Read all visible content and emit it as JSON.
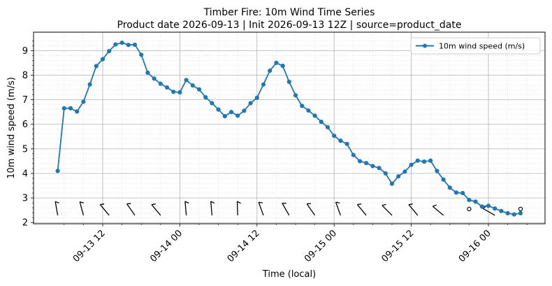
{
  "chart_data": {
    "type": "line",
    "title_line1": "Timber Fire: 10m Wind Time Series",
    "title_line2": "Product date 2026-09-13 | Init 2026-09-13 12Z | source=product_date",
    "xlabel": "Time (local)",
    "ylabel": "10m wind speed (m/s)",
    "ylim": [
      1.95,
      9.75
    ],
    "yticks": [
      2,
      3,
      4,
      5,
      6,
      7,
      8,
      9
    ],
    "xlim_hours": [
      -7.5,
      48.4
    ],
    "xticks": [
      {
        "hour": 0,
        "label": "09-13 12"
      },
      {
        "hour": 12,
        "label": "09-14 00"
      },
      {
        "hour": 24,
        "label": "09-14 12"
      },
      {
        "hour": 36,
        "label": "09-15 00"
      },
      {
        "hour": 48,
        "label": "09-15 12"
      },
      {
        "hour": 60,
        "label": "09-16 00"
      }
    ],
    "x_start_time": "09-13 05",
    "x_step_hours": 1,
    "grid": true,
    "legend_position": "top-right",
    "series": [
      {
        "name": "10m wind speed (m/s)",
        "color": "#1f77b4",
        "values": [
          4.1,
          6.65,
          6.65,
          6.52,
          6.92,
          7.62,
          8.37,
          8.65,
          8.98,
          9.25,
          9.32,
          9.23,
          9.24,
          8.83,
          8.1,
          7.86,
          7.65,
          7.5,
          7.32,
          7.3,
          7.8,
          7.58,
          7.42,
          7.1,
          6.86,
          6.6,
          6.33,
          6.5,
          6.35,
          6.55,
          6.86,
          7.08,
          7.62,
          8.18,
          8.5,
          8.38,
          7.73,
          7.18,
          6.75,
          6.56,
          6.35,
          6.1,
          5.88,
          5.53,
          5.33,
          5.2,
          4.75,
          4.5,
          4.42,
          4.3,
          4.22,
          4.0,
          3.58,
          3.88,
          4.07,
          4.35,
          4.52,
          4.48,
          4.52,
          4.1,
          3.75,
          3.42,
          3.22,
          3.2,
          2.92,
          2.85,
          2.65,
          2.68,
          2.57,
          2.47,
          2.38,
          2.33,
          2.38
        ]
      }
    ],
    "wind_barbs": {
      "y_level": 2.55,
      "glyphs": [
        {
          "hour": -7,
          "dir": 350
        },
        {
          "hour": -3,
          "dir": 345
        },
        {
          "hour": 1,
          "dir": 320
        },
        {
          "hour": 5,
          "dir": 325
        },
        {
          "hour": 9,
          "dir": 320
        },
        {
          "hour": 13,
          "dir": 355
        },
        {
          "hour": 17,
          "dir": 355
        },
        {
          "hour": 21,
          "dir": 358
        },
        {
          "hour": 25,
          "dir": 340
        },
        {
          "hour": 29,
          "dir": 330
        },
        {
          "hour": 33,
          "dir": 325
        },
        {
          "hour": 37,
          "dir": 340
        },
        {
          "hour": 41,
          "dir": 320
        },
        {
          "hour": 45,
          "dir": 315
        },
        {
          "hour": 49,
          "dir": 320
        },
        {
          "hour": 53,
          "dir": 310
        },
        {
          "hour": 57,
          "dir": 0,
          "calm": true
        },
        {
          "hour": 61,
          "dir": 300
        },
        {
          "hour": 65,
          "dir": 0,
          "calm": true
        }
      ]
    }
  }
}
